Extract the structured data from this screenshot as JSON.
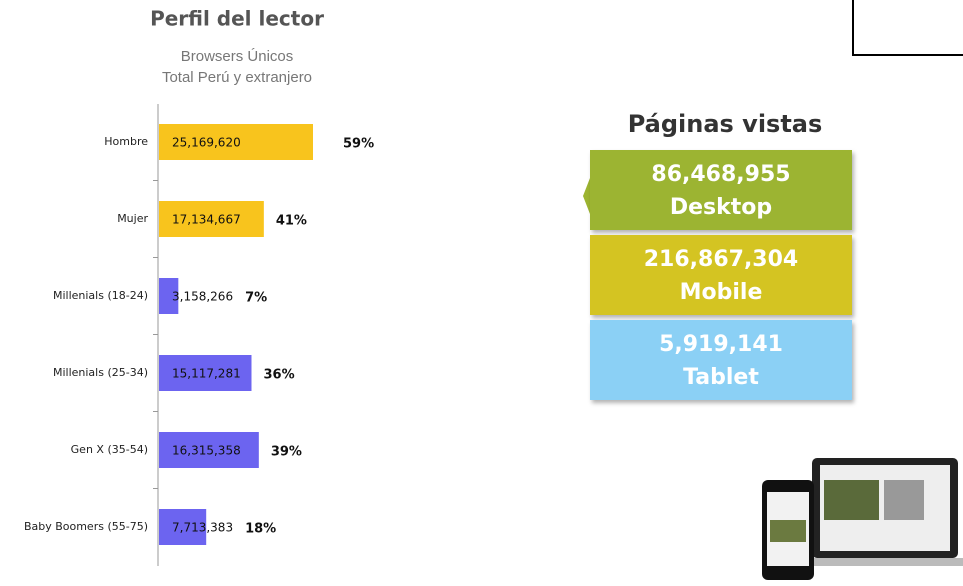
{
  "chart_data": {
    "type": "barh",
    "title": "Perfil del lector",
    "subtitle": [
      "Browsers Únicos",
      "Total Perú y extranjero"
    ],
    "categories": [
      "Hombre",
      "Mujer",
      "Millenials (18-24)",
      "Millenials (25-34)",
      "Gen X (35-54)",
      "Baby Boomers (55-75)"
    ],
    "values": [
      25169620,
      17134667,
      3158266,
      15117281,
      16315358,
      7713383
    ],
    "value_labels": [
      "25,169,620",
      "17,134,667",
      "3,158,266",
      "15,117,281",
      "16,315,358",
      "7,713,383"
    ],
    "shares": [
      59,
      41,
      7,
      36,
      39,
      18
    ],
    "share_labels": [
      "59%",
      "41%",
      "7%",
      "36%",
      "39%",
      "18%"
    ],
    "colors": [
      "#f8c41d",
      "#f8c41d",
      "#6c64f0",
      "#6c64f0",
      "#6c64f0",
      "#6c64f0"
    ]
  },
  "pageviews": {
    "title": "Páginas vistas",
    "items": [
      {
        "value": 86468955,
        "value_label": "86,468,955",
        "label": "Desktop",
        "color": "#9cb430"
      },
      {
        "value": 216867304,
        "value_label": "216,867,304",
        "label": "Mobile",
        "color": "#d4c421"
      },
      {
        "value": 5919141,
        "value_label": "5,919,141",
        "label": "Tablet",
        "color": "#8bd0f5"
      }
    ]
  }
}
